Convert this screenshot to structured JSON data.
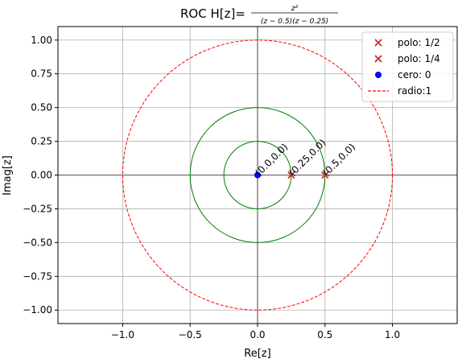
{
  "chart_data": {
    "type": "scatter",
    "title_prefix": "ROC H[z]=",
    "title_numerator": "z²",
    "title_denominator": "(z − 0.5)(z − 0.25)",
    "xlabel": "Re[z]",
    "ylabel": "Imag[z]",
    "xlim": [
      -1.48,
      1.48
    ],
    "ylim": [
      -1.1,
      1.1
    ],
    "grid": true,
    "legend_position": "top-right",
    "x_ticks": [
      {
        "value": -1.0,
        "label": "−1.0"
      },
      {
        "value": -0.5,
        "label": "−0.5"
      },
      {
        "value": 0.0,
        "label": "0.0"
      },
      {
        "value": 0.5,
        "label": "0.5"
      },
      {
        "value": 1.0,
        "label": "1.0"
      }
    ],
    "y_ticks": [
      {
        "value": -1.0,
        "label": "−1.00"
      },
      {
        "value": -0.75,
        "label": "−0.75"
      },
      {
        "value": -0.5,
        "label": "−0.50"
      },
      {
        "value": -0.25,
        "label": "−0.25"
      },
      {
        "value": 0.0,
        "label": "0.00"
      },
      {
        "value": 0.25,
        "label": "0.25"
      },
      {
        "value": 0.5,
        "label": "0.50"
      },
      {
        "value": 0.75,
        "label": "0.75"
      },
      {
        "value": 1.0,
        "label": "1.00"
      }
    ],
    "circles": [
      {
        "radius": 0.5,
        "color": "#008000",
        "style": "solid"
      },
      {
        "radius": 0.25,
        "color": "#008000",
        "style": "solid"
      },
      {
        "radius": 1.0,
        "color": "#ff0000",
        "style": "dashed"
      }
    ],
    "series": [
      {
        "name": "polo: 1/2",
        "marker": "x",
        "color": "#d62728",
        "points": [
          [
            0.5,
            0.0
          ]
        ]
      },
      {
        "name": "polo: 1/4",
        "marker": "x",
        "color": "#d62728",
        "points": [
          [
            0.25,
            0.0
          ]
        ]
      },
      {
        "name": "cero: 0",
        "marker": "o",
        "color": "#0000ff",
        "points": [
          [
            0.0,
            0.0
          ]
        ]
      }
    ],
    "legend": [
      {
        "label": "polo: 1/2",
        "marker": "x",
        "color": "#d62728"
      },
      {
        "label": "polo: 1/4",
        "marker": "x",
        "color": "#d62728"
      },
      {
        "label": "cero: 0",
        "marker": "o",
        "color": "#0000ff"
      },
      {
        "label": "radio:1",
        "marker": "dashed-line",
        "color": "#ff0000"
      }
    ],
    "annotations": [
      {
        "text": "(0.0,0.0)",
        "x": 0.0,
        "y": 0.0
      },
      {
        "text": "(0.25,0.0)",
        "x": 0.25,
        "y": 0.0
      },
      {
        "text": "(0.5,0.0)",
        "x": 0.5,
        "y": 0.0
      }
    ]
  }
}
